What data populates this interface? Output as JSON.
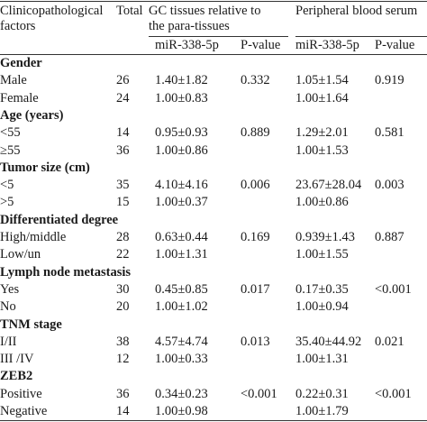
{
  "header": {
    "col1_line1": "Clinicopathological",
    "col1_line2": "factors",
    "total": "Total",
    "group1_line1": "GC tissues relative to",
    "group1_line2": "the para-tissues",
    "group2": "Peripheral blood serum",
    "sub_mir_1": "miR-338-5p",
    "sub_p_1": "P-value",
    "sub_mir_2": "miR-338-5p",
    "sub_p_2": "P-value"
  },
  "sections": [
    {
      "title": "Gender",
      "rows": [
        {
          "label": "Male",
          "total": "26",
          "gc": "1.40±1.82",
          "gc_p": "0.332",
          "serum": "1.05±1.54",
          "serum_p": "0.919"
        },
        {
          "label": "Female",
          "total": "24",
          "gc": "1.00±0.83",
          "gc_p": "",
          "serum": "1.00±1.64",
          "serum_p": ""
        }
      ]
    },
    {
      "title": "Age (years)",
      "rows": [
        {
          "label": "<55",
          "total": "14",
          "gc": "0.95±0.93",
          "gc_p": "0.889",
          "serum": "1.29±2.01",
          "serum_p": "0.581"
        },
        {
          "label": "≥55",
          "total": "36",
          "gc": "1.00±0.86",
          "gc_p": "",
          "serum": "1.00±1.53",
          "serum_p": ""
        }
      ]
    },
    {
      "title": "Tumor size (cm)",
      "rows": [
        {
          "label": "<5",
          "total": "35",
          "gc": "4.10±4.16",
          "gc_p": "0.006",
          "serum": "23.67±28.04",
          "serum_p": "0.003"
        },
        {
          "label": ">5",
          "total": "15",
          "gc": "1.00±0.37",
          "gc_p": "",
          "serum": "1.00±0.86",
          "serum_p": ""
        }
      ]
    },
    {
      "title": "Differentiated degree",
      "rows": [
        {
          "label": "High/middle",
          "total": "28",
          "gc": "0.63±0.44",
          "gc_p": "0.169",
          "serum": "0.939±1.43",
          "serum_p": "0.887"
        },
        {
          "label": "Low/un",
          "total": "22",
          "gc": "1.00±1.31",
          "gc_p": "",
          "serum": "1.00±1.55",
          "serum_p": ""
        }
      ]
    },
    {
      "title": "Lymph node metastasis",
      "rows": [
        {
          "label": "Yes",
          "total": "30",
          "gc": "0.45±0.85",
          "gc_p": "0.017",
          "serum": "0.17±0.35",
          "serum_p": "<0.001"
        },
        {
          "label": "No",
          "total": "20",
          "gc": "1.00±1.02",
          "gc_p": "",
          "serum": "1.00±0.94",
          "serum_p": ""
        }
      ]
    },
    {
      "title": "TNM stage",
      "rows": [
        {
          "label": "I/II",
          "total": "38",
          "gc": "4.57±4.74",
          "gc_p": "0.013",
          "serum": "35.40±44.92",
          "serum_p": "0.021"
        },
        {
          "label": "III /IV",
          "total": "12",
          "gc": "1.00±0.33",
          "gc_p": "",
          "serum": "1.00±1.31",
          "serum_p": ""
        }
      ]
    },
    {
      "title": "ZEB2",
      "rows": [
        {
          "label": "Positive",
          "total": "36",
          "gc": "0.34±0.23",
          "gc_p": "<0.001",
          "serum": "0.22±0.31",
          "serum_p": "<0.001"
        },
        {
          "label": "Negative",
          "total": "14",
          "gc": "1.00±0.98",
          "gc_p": "",
          "serum": "1.00±1.79",
          "serum_p": ""
        }
      ]
    }
  ]
}
